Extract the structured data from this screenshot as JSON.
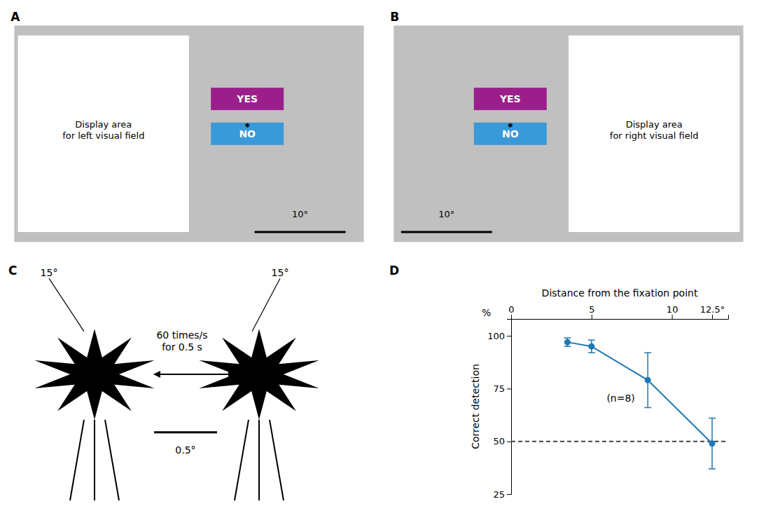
{
  "chart_data": [
    {
      "type": "diagram",
      "title": "A",
      "annotations": [
        "Display area\nfor left visual field",
        "YES",
        "✱",
        "NO",
        "10°"
      ],
      "colors": [
        "#C0C0C0",
        "#FFFFFF",
        "#9B1F8A",
        "#3A99D8"
      ]
    },
    {
      "type": "diagram",
      "title": "B",
      "annotations": [
        "Display area\nfor right visual field",
        "YES",
        "✱",
        "NO",
        "10°"
      ],
      "colors": [
        "#C0C0C0",
        "#FFFFFF",
        "#9B1F8A",
        "#3A99D8"
      ]
    },
    {
      "type": "diagram",
      "title": "C",
      "annotations": [
        "60 times/s\nfor 0.5 s",
        "0.5°",
        "15°",
        "15°"
      ]
    },
    {
      "type": "line",
      "title": "D",
      "x": [
        3.5,
        5.0,
        8.5,
        12.5
      ],
      "values": [
        97,
        95,
        79,
        49
      ],
      "errors": [
        2,
        3,
        13,
        12
      ],
      "xlim": [
        0,
        13.5
      ],
      "xticks": [
        0,
        5,
        10,
        {
          "value": 12.5,
          "label": "12.5°"
        }
      ],
      "ylim": [
        25,
        108
      ],
      "yticks": [
        25,
        50,
        75,
        100
      ],
      "xlabel": "Distance from the fixation point",
      "ylabel": "Correct detection",
      "hline": 50,
      "annotations": [
        "(n=8)",
        "%"
      ],
      "marker": "circle",
      "line_style": "solid"
    }
  ]
}
